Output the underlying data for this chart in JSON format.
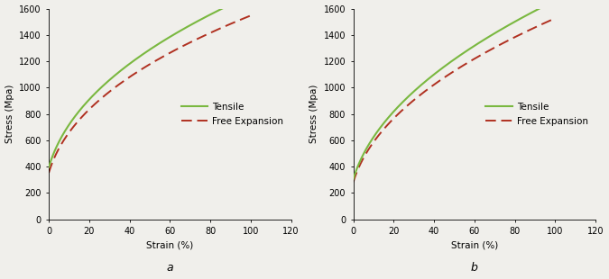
{
  "background_color": "#f0efeb",
  "panel_bg": "#f0efeb",
  "xlabel": "Strain (%)",
  "ylabel": "Stress (Mpa)",
  "xlim": [
    0,
    120
  ],
  "ylim": [
    0,
    1600
  ],
  "xticks": [
    0,
    20,
    40,
    60,
    80,
    100,
    120
  ],
  "yticks": [
    0,
    200,
    400,
    600,
    800,
    1000,
    1200,
    1400,
    1600
  ],
  "label_a": "a",
  "label_b": "b",
  "tensile_color": "#7ab840",
  "free_exp_color": "#b03020",
  "tensile_label": "Tensile",
  "free_exp_label": "Free Expansion",
  "panel_a": {
    "tensile_C": 1680,
    "tensile_n": 0.42,
    "tensile_eps0": 0.032,
    "free_exp_C": 1530,
    "free_exp_n": 0.41,
    "free_exp_eps0": 0.028
  },
  "panel_b": {
    "tensile_C": 1640,
    "tensile_n": 0.47,
    "tensile_eps0": 0.028,
    "free_exp_C": 1510,
    "free_exp_n": 0.455,
    "free_exp_eps0": 0.025
  }
}
